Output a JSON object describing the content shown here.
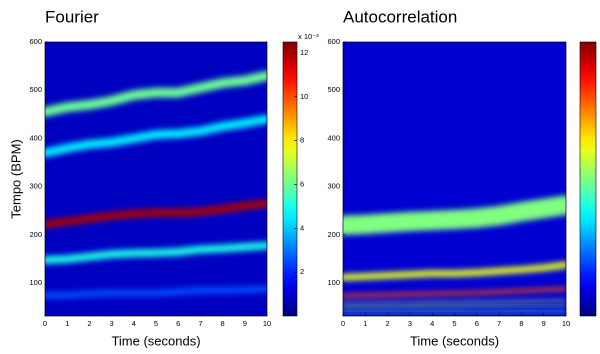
{
  "chart_data": [
    {
      "type": "tempogram",
      "title": "Fourier",
      "xlabel": "Time (seconds)",
      "ylabel": "Tempo (BPM)",
      "xlim": [
        0,
        10
      ],
      "xticks": [
        0,
        1,
        2,
        3,
        4,
        5,
        6,
        7,
        8,
        9,
        10
      ],
      "ylim": [
        32,
        600
      ],
      "yticks": [
        100,
        200,
        300,
        400,
        500,
        600
      ],
      "colormap": "jet",
      "clim": [
        0,
        12.5
      ],
      "colorbar_ticks": [
        2,
        4,
        6,
        8,
        10,
        12
      ],
      "colorbar_label": "x 10⁻³",
      "background": 0.8,
      "x": [
        0,
        1,
        2,
        3,
        4,
        5,
        6,
        7,
        8,
        9,
        10
      ],
      "ridges": [
        {
          "values": [
            75,
            75,
            78,
            80,
            80,
            80,
            82,
            85,
            85,
            86,
            88
          ],
          "intensity": 2.5,
          "width": 14
        },
        {
          "values": [
            148,
            150,
            155,
            160,
            162,
            163,
            165,
            170,
            172,
            175,
            178
          ],
          "intensity": 5,
          "width": 16
        },
        {
          "values": [
            370,
            380,
            388,
            392,
            400,
            408,
            410,
            415,
            425,
            432,
            440
          ],
          "intensity": 4.5,
          "width": 18
        },
        {
          "values": [
            455,
            465,
            470,
            478,
            490,
            495,
            495,
            505,
            515,
            520,
            530
          ],
          "intensity": 6,
          "width": 20
        },
        {
          "values": [
            222,
            228,
            234,
            240,
            244,
            246,
            246,
            248,
            254,
            260,
            266
          ],
          "intensity": 12,
          "width": 16
        }
      ]
    },
    {
      "type": "tempogram",
      "title": "Autocorrelation",
      "xlabel": "Time (seconds)",
      "xlim": [
        0,
        10
      ],
      "xticks": [
        0,
        1,
        2,
        3,
        4,
        5,
        6,
        7,
        8,
        9,
        10
      ],
      "ylim": [
        32,
        600
      ],
      "yticks": [
        100,
        200,
        300,
        400,
        500,
        600
      ],
      "colormap": "jet",
      "clim": [
        0,
        1
      ],
      "background": 0.08,
      "x": [
        0,
        1,
        2,
        3,
        4,
        5,
        6,
        7,
        8,
        9,
        10
      ],
      "ridges": [
        {
          "values": [
            220,
            222,
            225,
            228,
            230,
            232,
            235,
            240,
            248,
            255,
            262
          ],
          "intensity": 0.5,
          "width": 40
        },
        {
          "values": [
            112,
            114,
            116,
            118,
            120,
            120,
            122,
            125,
            128,
            132,
            138
          ],
          "intensity": 0.6,
          "width": 14
        },
        {
          "values": [
            74,
            75,
            76,
            77,
            78,
            79,
            80,
            82,
            84,
            86,
            88
          ],
          "intensity": 0.8,
          "width": 7
        },
        {
          "values": [
            57,
            57,
            58,
            58,
            59,
            59,
            60,
            60,
            61,
            62,
            63
          ],
          "intensity": 0.55,
          "width": 4
        },
        {
          "values": [
            47,
            47,
            47,
            48,
            48,
            48,
            49,
            49,
            49,
            50,
            50
          ],
          "intensity": 0.5,
          "width": 3
        },
        {
          "values": [
            38,
            38,
            38,
            38,
            39,
            39,
            39,
            39,
            40,
            40,
            40
          ],
          "intensity": 0.45,
          "width": 3
        }
      ]
    }
  ]
}
